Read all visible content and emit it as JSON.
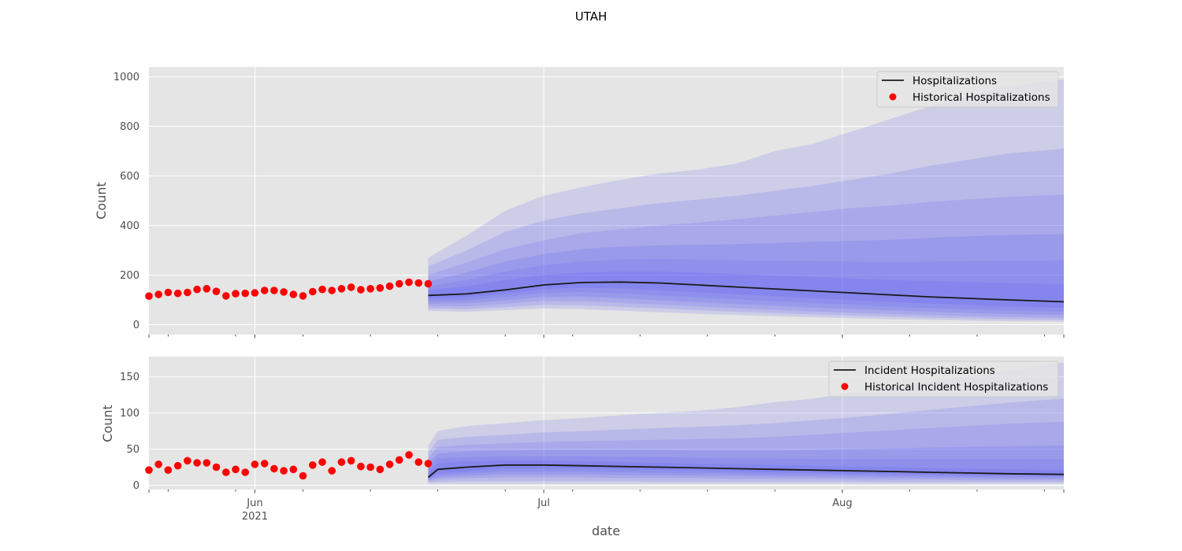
{
  "figure": {
    "title": "UTAH",
    "xlabel": "date"
  },
  "colors": {
    "background": "#E5E5E5",
    "grid": "#FFFFFF",
    "band": "#5A5AF5",
    "median": "#1A1A1A",
    "historical": "#FF0000"
  },
  "chart_data": [
    {
      "type": "line",
      "panel": "top",
      "ylabel": "Count",
      "xlim": [
        "2021-05-21",
        "2021-08-24"
      ],
      "ylim": [
        -40,
        1040
      ],
      "yticks": [
        0,
        200,
        400,
        600,
        800,
        1000
      ],
      "xticks": [
        {
          "date": "2021-06-01",
          "label": "Jun",
          "sublabel": "2021"
        },
        {
          "date": "2021-07-01",
          "label": "Jul",
          "sublabel": ""
        },
        {
          "date": "2021-08-01",
          "label": "Aug",
          "sublabel": ""
        }
      ],
      "legend": {
        "position": "top-right",
        "line_label": "Hospitalizations",
        "points_label": "Historical Hospitalizations"
      },
      "historical": {
        "start": "2021-05-21",
        "values": [
          115,
          122,
          130,
          126,
          130,
          142,
          145,
          134,
          116,
          125,
          126,
          128,
          138,
          138,
          132,
          122,
          116,
          133,
          142,
          138,
          145,
          151,
          141,
          145,
          148,
          155,
          165,
          171,
          168,
          165
        ]
      },
      "forecast": {
        "start": "2021-06-19",
        "dates": [
          "2021-06-19",
          "2021-06-23",
          "2021-06-27",
          "2021-07-01",
          "2021-07-05",
          "2021-07-09",
          "2021-07-13",
          "2021-07-17",
          "2021-07-21",
          "2021-07-25",
          "2021-07-29",
          "2021-08-02",
          "2021-08-06",
          "2021-08-10",
          "2021-08-14",
          "2021-08-18",
          "2021-08-24"
        ],
        "median": [
          118,
          124,
          140,
          160,
          170,
          172,
          168,
          160,
          152,
          144,
          136,
          128,
          120,
          112,
          106,
          100,
          92
        ],
        "bands": [
          {
            "lower": [
              55,
              52,
              58,
              65,
              62,
              56,
              50,
              44,
              39,
              34,
              30,
              26,
              22,
              19,
              16,
              14,
              12
            ],
            "upper": [
              270,
              360,
              460,
              520,
              555,
              585,
              610,
              625,
              650,
              700,
              730,
              780,
              830,
              880,
              920,
              960,
              990
            ]
          },
          {
            "lower": [
              65,
              62,
              70,
              80,
              78,
              72,
              65,
              58,
              52,
              46,
              41,
              36,
              32,
              28,
              25,
              22,
              19
            ],
            "upper": [
              235,
              300,
              375,
              420,
              450,
              470,
              490,
              505,
              520,
              540,
              560,
              585,
              610,
              640,
              665,
              690,
              710
            ]
          },
          {
            "lower": [
              75,
              74,
              84,
              96,
              95,
              88,
              81,
              73,
              66,
              59,
              53,
              48,
              43,
              38,
              34,
              31,
              27
            ],
            "upper": [
              200,
              250,
              305,
              340,
              370,
              385,
              400,
              412,
              425,
              440,
              455,
              470,
              480,
              495,
              505,
              515,
              525
            ]
          },
          {
            "lower": [
              85,
              86,
              98,
              112,
              113,
              106,
              98,
              90,
              83,
              76,
              69,
              63,
              57,
              52,
              47,
              43,
              39
            ],
            "upper": [
              175,
              210,
              255,
              285,
              305,
              315,
              320,
              322,
              325,
              330,
              334,
              338,
              342,
              350,
              356,
              362,
              365
            ]
          },
          {
            "lower": [
              95,
              98,
              112,
              128,
              132,
              126,
              118,
              110,
              102,
              94,
              87,
              80,
              73,
              67,
              62,
              57,
              52
            ],
            "upper": [
              155,
              180,
              215,
              240,
              255,
              262,
              265,
              262,
              260,
              258,
              256,
              254,
              252,
              254,
              256,
              258,
              260
            ]
          },
          {
            "lower": [
              105,
              110,
              125,
              144,
              150,
              146,
              139,
              131,
              123,
              115,
              107,
              99,
              92,
              85,
              80,
              74,
              68
            ],
            "upper": [
              138,
              155,
              180,
              200,
              210,
              214,
              214,
              210,
              204,
              198,
              192,
              186,
              180,
              176,
              172,
              168,
              162
            ]
          }
        ]
      }
    },
    {
      "type": "line",
      "panel": "bottom",
      "ylabel": "Count",
      "xlim": [
        "2021-05-21",
        "2021-08-24"
      ],
      "ylim": [
        -6,
        178
      ],
      "yticks": [
        0,
        50,
        100,
        150
      ],
      "xticks": [
        {
          "date": "2021-06-01",
          "label": "Jun",
          "sublabel": "2021"
        },
        {
          "date": "2021-07-01",
          "label": "Jul",
          "sublabel": ""
        },
        {
          "date": "2021-08-01",
          "label": "Aug",
          "sublabel": ""
        }
      ],
      "legend": {
        "position": "top-right",
        "line_label": "Incident Hospitalizations",
        "points_label": "Historical Incident Hospitalizations"
      },
      "historical": {
        "start": "2021-05-21",
        "values": [
          21,
          29,
          21,
          27,
          34,
          31,
          31,
          25,
          18,
          22,
          18,
          29,
          30,
          23,
          20,
          22,
          13,
          28,
          32,
          20,
          32,
          34,
          26,
          25,
          22,
          29,
          35,
          42,
          32,
          30
        ]
      },
      "forecast": {
        "start": "2021-06-19",
        "dates": [
          "2021-06-19",
          "2021-06-20",
          "2021-06-23",
          "2021-06-27",
          "2021-07-01",
          "2021-07-05",
          "2021-07-09",
          "2021-07-13",
          "2021-07-17",
          "2021-07-21",
          "2021-07-25",
          "2021-07-29",
          "2021-08-02",
          "2021-08-06",
          "2021-08-10",
          "2021-08-14",
          "2021-08-18",
          "2021-08-24"
        ],
        "median": [
          11,
          22,
          25,
          28,
          28,
          27,
          26,
          25,
          24,
          23,
          22,
          21,
          20,
          19,
          18,
          17,
          16,
          15
        ],
        "bands": [
          {
            "lower": [
              2,
              2,
              2,
              2,
              2,
              2,
              2,
              2,
              2,
              2,
              2,
              2,
              2,
              2,
              2,
              2,
              2,
              2
            ],
            "upper": [
              55,
              75,
              82,
              86,
              90,
              93,
              97,
              100,
              103,
              108,
              115,
              120,
              128,
              135,
              142,
              150,
              158,
              170
            ]
          },
          {
            "lower": [
              4,
              5,
              6,
              6,
              6,
              6,
              6,
              5,
              5,
              5,
              5,
              5,
              5,
              4,
              4,
              4,
              4,
              4
            ],
            "upper": [
              45,
              63,
              67,
              70,
              73,
              75,
              77,
              79,
              81,
              83,
              86,
              90,
              94,
              99,
              104,
              109,
              114,
              120
            ]
          },
          {
            "lower": [
              6,
              8,
              10,
              11,
              11,
              11,
              10,
              10,
              10,
              9,
              9,
              9,
              8,
              8,
              8,
              7,
              7,
              7
            ],
            "upper": [
              38,
              53,
              56,
              58,
              60,
              61,
              62,
              63,
              64,
              65,
              67,
              70,
              73,
              76,
              79,
              82,
              85,
              88
            ]
          },
          {
            "lower": [
              7,
              11,
              13,
              15,
              15,
              15,
              14,
              14,
              13,
              13,
              12,
              12,
              11,
              11,
              10,
              10,
              9,
              9
            ],
            "upper": [
              30,
              44,
              47,
              48,
              49,
              49,
              49,
              49,
              48,
              48,
              48,
              49,
              50,
              51,
              52,
              53,
              54,
              55
            ]
          },
          {
            "lower": [
              8,
              14,
              16,
              19,
              19,
              19,
              18,
              17,
              17,
              16,
              15,
              15,
              14,
              13,
              13,
              12,
              12,
              11
            ],
            "upper": [
              24,
              37,
              39,
              40,
              40,
              40,
              39,
              39,
              38,
              37,
              37,
              36,
              36,
              36,
              36,
              36,
              36,
              36
            ]
          },
          {
            "lower": [
              9,
              17,
              19,
              23,
              23,
              23,
              22,
              21,
              20,
              19,
              18,
              17,
              16,
              16,
              15,
              14,
              14,
              13
            ],
            "upper": [
              18,
              30,
              33,
              34,
              34,
              33,
              32,
              31,
              30,
              29,
              28,
              27,
              26,
              25,
              24,
              23,
              22,
              21
            ]
          }
        ]
      }
    }
  ]
}
